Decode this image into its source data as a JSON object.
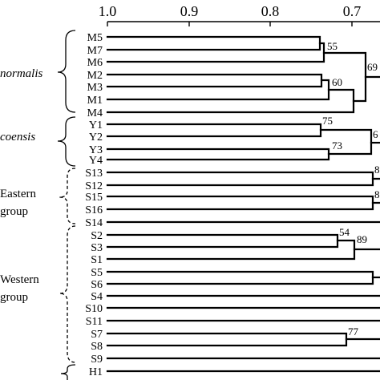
{
  "axis": {
    "ticks": [
      "1.0",
      "0.9",
      "0.8",
      "0.7"
    ]
  },
  "groups": [
    {
      "label": "normalis",
      "italic": true,
      "brace": "solid"
    },
    {
      "label": "coensis",
      "italic": true,
      "brace": "solid"
    },
    {
      "label": "Eastern",
      "label2": "group",
      "italic": false,
      "brace": "dashed"
    },
    {
      "label": "Western",
      "label2": "group",
      "italic": false,
      "brace": "dashed"
    }
  ],
  "leaves": [
    "M5",
    "M7",
    "M6",
    "M2",
    "M3",
    "M1",
    "M4",
    "Y1",
    "Y2",
    "Y3",
    "Y4",
    "S13",
    "S12",
    "S15",
    "S16",
    "S14",
    "S2",
    "S3",
    "S1",
    "S5",
    "S6",
    "S4",
    "S10",
    "S11",
    "S7",
    "S8",
    "S9",
    "H1"
  ],
  "support": [
    "55",
    "69",
    "60",
    "75",
    "6",
    "73",
    "8",
    "8",
    "54",
    "89",
    "77"
  ],
  "colors": {
    "line": "#000000",
    "background": "#ffffff"
  }
}
